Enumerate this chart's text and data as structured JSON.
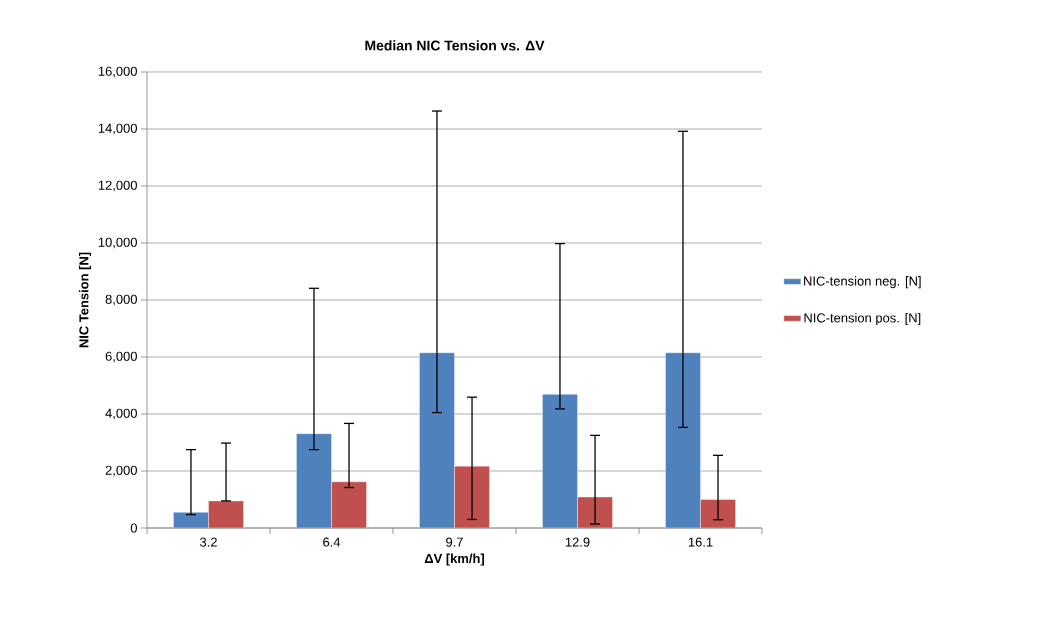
{
  "chart_data": {
    "type": "bar",
    "title": "Median NIC Tension vs. ΔV",
    "xlabel": "ΔV [km/h]",
    "ylabel": "NIC Tension [N]",
    "categories": [
      "3.2",
      "6.4",
      "9.7",
      "12.9",
      "16.1"
    ],
    "series": [
      {
        "name": "NIC-tension neg. [N]",
        "color": "#4f81bd",
        "values": [
          550,
          3310,
          6150,
          4690,
          6150
        ],
        "errors": [
          [
            470,
            2750
          ],
          [
            2750,
            8410
          ],
          [
            4050,
            14630
          ],
          [
            4180,
            9980
          ],
          [
            3530,
            13920
          ]
        ]
      },
      {
        "name": "NIC-tension pos. [N]",
        "color": "#c0504d",
        "values": [
          950,
          1620,
          2170,
          1090,
          1000
        ],
        "errors": [
          [
            950,
            2980
          ],
          [
            1420,
            3670
          ],
          [
            300,
            4590
          ],
          [
            140,
            3250
          ],
          [
            290,
            2550
          ]
        ]
      }
    ],
    "ylim": [
      0,
      16000
    ],
    "yticks": [
      0,
      {
        "value": 2000,
        "label": "2,000"
      },
      {
        "value": 4000,
        "label": "4,000"
      },
      {
        "value": 6000,
        "label": "6,000"
      },
      {
        "value": 8000,
        "label": "8,000"
      },
      {
        "value": 10000,
        "label": "10,000"
      },
      {
        "value": 12000,
        "label": "12,000"
      },
      {
        "value": 14000,
        "label": "14,000"
      },
      {
        "value": 16000,
        "label": "16,000"
      }
    ],
    "grid": "y",
    "legend": "right"
  }
}
